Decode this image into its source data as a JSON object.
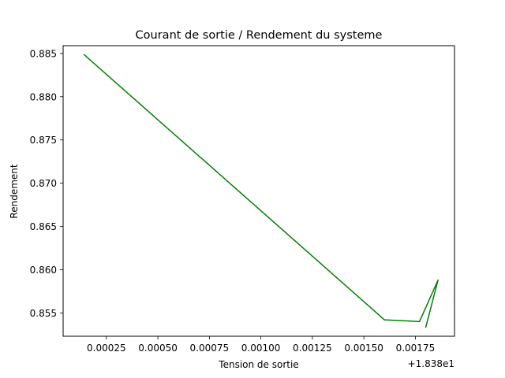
{
  "chart_data": {
    "type": "line",
    "title": "Courant de sortie / Rendement du systeme",
    "xlabel": "Tension de sortie",
    "ylabel": "Rendement",
    "x_offset_label": "+1.838e1",
    "x_ticks": [
      "0.00025",
      "0.00050",
      "0.00075",
      "0.00100",
      "0.00125",
      "0.00150",
      "0.00175"
    ],
    "y_ticks": [
      "0.855",
      "0.860",
      "0.865",
      "0.870",
      "0.875",
      "0.880",
      "0.885"
    ],
    "xlim": [
      4e-05,
      0.00194
    ],
    "ylim": [
      0.8523,
      0.8859
    ],
    "grid": false,
    "series": [
      {
        "color": "#008000",
        "x": [
          0.00014,
          0.0016,
          0.00177,
          0.00186,
          0.0018
        ],
        "y": [
          0.8849,
          0.8542,
          0.854,
          0.8588,
          0.8533
        ]
      }
    ]
  }
}
